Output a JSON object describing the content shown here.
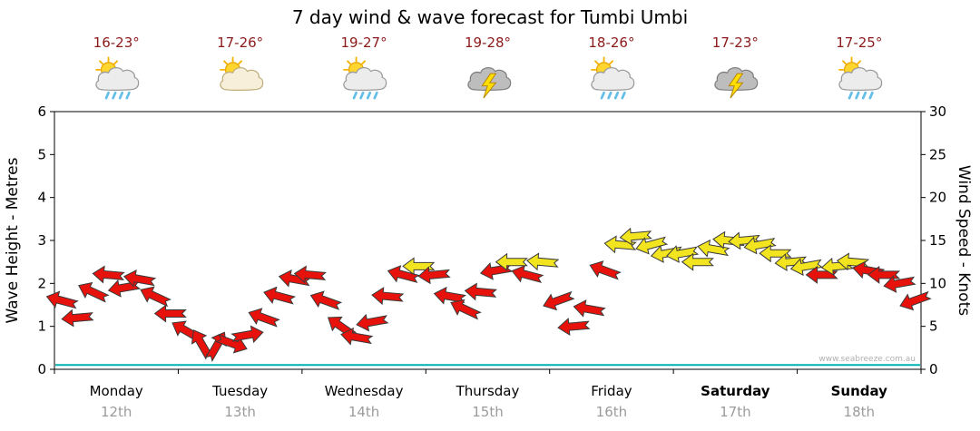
{
  "title": "7 day wind & wave forecast for Tumbi Umbi",
  "watermark": "www.seabreeze.com.au",
  "axes": {
    "left_label": "Wave Height - Metres",
    "right_label": "Wind Speed - Knots"
  },
  "days": [
    {
      "name": "Monday",
      "date": "12th",
      "temp": "16-23°",
      "icon": "sun-cloud-rain"
    },
    {
      "name": "Tuesday",
      "date": "13th",
      "temp": "17-26°",
      "icon": "sun-cloud"
    },
    {
      "name": "Wednesday",
      "date": "14th",
      "temp": "19-27°",
      "icon": "sun-cloud-rain"
    },
    {
      "name": "Thursday",
      "date": "15th",
      "temp": "19-28°",
      "icon": "storm"
    },
    {
      "name": "Friday",
      "date": "16th",
      "temp": "18-26°",
      "icon": "sun-cloud-rain"
    },
    {
      "name": "Saturday",
      "date": "17th",
      "temp": "17-23°",
      "icon": "storm"
    },
    {
      "name": "Sunday",
      "date": "18th",
      "temp": "17-25°",
      "icon": "sun-cloud-rain"
    }
  ],
  "chart_data": {
    "type": "scatter",
    "subtype": "wind-arrows",
    "title": "7 day wind & wave forecast for Tumbi Umbi",
    "x_categories": [
      "Monday 12th",
      "Tuesday 13th",
      "Wednesday 14th",
      "Thursday 15th",
      "Friday 16th",
      "Saturday 17th",
      "Sunday 18th"
    ],
    "points_per_day": 8,
    "left_axis": {
      "label": "Wave Height - Metres",
      "range": [
        0,
        6
      ],
      "ticks": [
        0,
        1,
        2,
        3,
        4,
        5,
        6
      ]
    },
    "right_axis": {
      "label": "Wind Speed - Knots",
      "range": [
        0,
        30
      ],
      "ticks": [
        0,
        5,
        10,
        15,
        20,
        25,
        30
      ]
    },
    "grid": false,
    "series": [
      {
        "name": "Wind Speed",
        "unit": "knots",
        "style": "arrows",
        "color_low": "#e8120c",
        "color_high": "#f2e41e",
        "high_threshold_knots": 12,
        "values_knots": [
          8,
          6,
          9,
          11,
          9.5,
          10.5,
          8.5,
          6.5,
          4.5,
          3,
          2.75,
          3,
          4,
          6,
          8.5,
          10.5,
          11,
          8,
          5,
          3.75,
          5.5,
          8.5,
          11,
          12,
          11,
          8.5,
          7,
          9,
          11.5,
          12.5,
          11,
          12.5,
          8,
          5,
          7,
          11.5,
          14.5,
          15.5,
          14.5,
          13.5,
          13.5,
          12.5,
          14,
          15,
          15,
          14.5,
          13.5,
          12.5,
          12,
          11,
          12,
          12.5,
          11.5,
          11,
          10,
          8
        ],
        "arrow_rotation_deg": [
          195,
          175,
          205,
          185,
          170,
          190,
          205,
          180,
          210,
          240,
          300,
          20,
          350,
          200,
          195,
          190,
          185,
          200,
          215,
          190,
          170,
          185,
          195,
          180,
          175,
          190,
          205,
          185,
          170,
          180,
          195,
          185,
          160,
          175,
          190,
          200,
          185,
          175,
          165,
          170,
          170,
          180,
          190,
          185,
          175,
          170,
          180,
          175,
          170,
          180,
          175,
          185,
          190,
          180,
          170,
          160
        ]
      },
      {
        "name": "Wave Height",
        "unit": "metres",
        "style": "line",
        "color": "#00b2b2",
        "constant_m": 0.1
      }
    ]
  }
}
